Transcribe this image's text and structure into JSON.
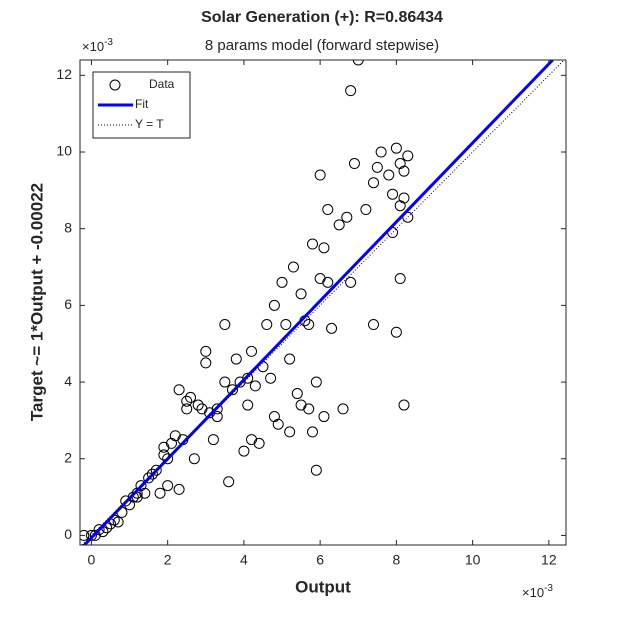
{
  "chart_data": {
    "type": "scatter",
    "title": "Solar Generation (+): R=0.86434",
    "subtitle": "8 params model (forward stepwise)",
    "xlabel": "Output",
    "ylabel": "Target ~= 1*Output + -0.00022",
    "x_exponent": {
      "base": "×10",
      "exp": "-3"
    },
    "y_exponent": {
      "base": "×10",
      "exp": "-3"
    },
    "xlim": [
      -0.3,
      12.45
    ],
    "ylim": [
      -0.25,
      12.4
    ],
    "xticks": [
      0,
      2,
      4,
      6,
      8,
      10,
      12
    ],
    "yticks": [
      0,
      2,
      4,
      6,
      8,
      10,
      12
    ],
    "grid": false,
    "legend": "upper left",
    "series": [
      {
        "name": "Data",
        "type": "scatter",
        "color": "#000000",
        "x": [
          -0.2,
          0,
          0.1,
          0.3,
          0.2,
          0.4,
          0.5,
          0.6,
          0.7,
          0.8,
          0.9,
          1.0,
          1.1,
          1.2,
          1.3,
          1.4,
          1.5,
          1.6,
          1.7,
          1.8,
          1.9,
          1.9,
          2.0,
          2.1,
          2.2,
          2.3,
          2.4,
          2.5,
          2.3,
          2.5,
          2.6,
          2.7,
          2.8,
          2.9,
          3.0,
          3.0,
          3.1,
          3.2,
          3.3,
          3.5,
          3.5,
          3.6,
          3.7,
          3.8,
          3.9,
          4.0,
          4.1,
          4.2,
          4.2,
          4.4,
          4.5,
          4.6,
          4.7,
          4.8,
          4.8,
          4.9,
          5.0,
          5.1,
          5.2,
          5.2,
          5.3,
          5.4,
          5.5,
          5.6,
          5.7,
          5.8,
          5.8,
          5.9,
          5.9,
          6.0,
          6.0,
          6.1,
          6.2,
          6.1,
          6.3,
          6.5,
          6.6,
          6.8,
          6.8,
          6.9,
          7.0,
          7.2,
          7.4,
          7.4,
          7.5,
          7.6,
          7.8,
          7.9,
          7.9,
          8.0,
          8.1,
          8.1,
          8.0,
          8.1,
          8.2,
          8.2,
          8.2,
          8.3,
          8.3,
          4.1,
          5.7,
          3.3,
          2.0,
          1.2,
          6.7,
          4.3,
          5.5,
          6.2
        ],
        "values": [
          0,
          0,
          0,
          0.1,
          0.15,
          0.2,
          0.3,
          0.4,
          0.35,
          0.6,
          0.9,
          0.8,
          1.0,
          1.1,
          1.3,
          1.1,
          1.5,
          1.6,
          1.7,
          1.1,
          2.1,
          2.3,
          1.3,
          2.4,
          2.6,
          1.2,
          2.5,
          3.5,
          3.8,
          3.3,
          3.6,
          2.0,
          3.4,
          3.3,
          4.8,
          4.5,
          3.2,
          2.5,
          3.1,
          5.5,
          4.0,
          1.4,
          3.8,
          4.6,
          4.0,
          2.2,
          3.4,
          4.8,
          2.5,
          2.4,
          4.4,
          5.5,
          4.1,
          6.0,
          3.1,
          2.9,
          6.6,
          5.5,
          2.7,
          4.6,
          7.0,
          3.7,
          6.3,
          5.6,
          3.3,
          7.6,
          2.7,
          1.7,
          4.0,
          6.7,
          9.4,
          7.5,
          8.5,
          3.1,
          5.4,
          8.1,
          3.3,
          6.6,
          11.6,
          9.7,
          12.4,
          8.5,
          9.2,
          5.5,
          9.6,
          10.0,
          9.4,
          8.9,
          7.9,
          10.1,
          9.7,
          8.6,
          5.3,
          6.7,
          9.5,
          8.8,
          3.4,
          9.9,
          8.3,
          4.1,
          5.5,
          3.3,
          2.0,
          1.0,
          8.3,
          3.9,
          3.4,
          6.6
        ]
      },
      {
        "name": "Fit",
        "type": "line",
        "color": "#0000ff",
        "x": [
          -0.3,
          12.1
        ],
        "values": [
          -0.37,
          12.4
        ]
      },
      {
        "name": "Y = T",
        "type": "line",
        "color": "#000000",
        "dotted": true,
        "x": [
          -0.3,
          12.45
        ],
        "values": [
          -0.3,
          12.45
        ]
      }
    ]
  }
}
